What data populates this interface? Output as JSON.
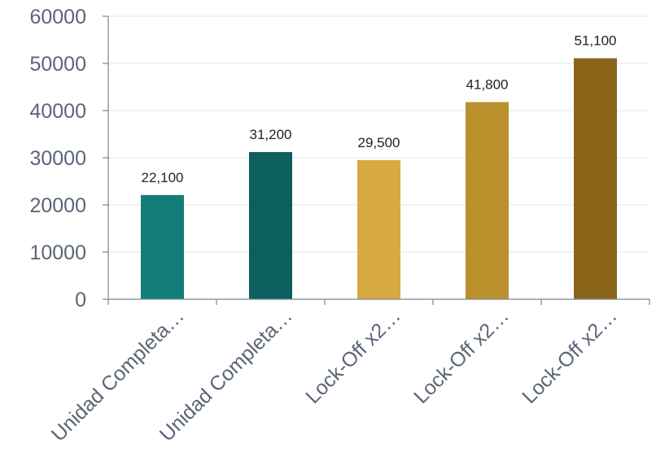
{
  "chart_data": {
    "type": "bar",
    "categories": [
      "Unidad Completa…",
      "Unidad Completa…",
      "Lock-Off x2…",
      "Lock-Off x2…",
      "Lock-Off x2…"
    ],
    "values": [
      22100,
      31200,
      29500,
      41800,
      51100
    ],
    "data_labels": [
      "22,100",
      "31,200",
      "29,500",
      "41,800",
      "51,100"
    ],
    "bar_colors": [
      "#137d79",
      "#0d5f5d",
      "#d8a940",
      "#b9902c",
      "#8a6418"
    ],
    "y_ticks": [
      0,
      10000,
      20000,
      30000,
      40000,
      50000,
      60000
    ],
    "y_tick_labels": [
      "0",
      "10000",
      "20000",
      "30000",
      "40000",
      "50000",
      "60000"
    ],
    "ylim": [
      0,
      60000
    ],
    "grid": true,
    "legend": "none"
  }
}
